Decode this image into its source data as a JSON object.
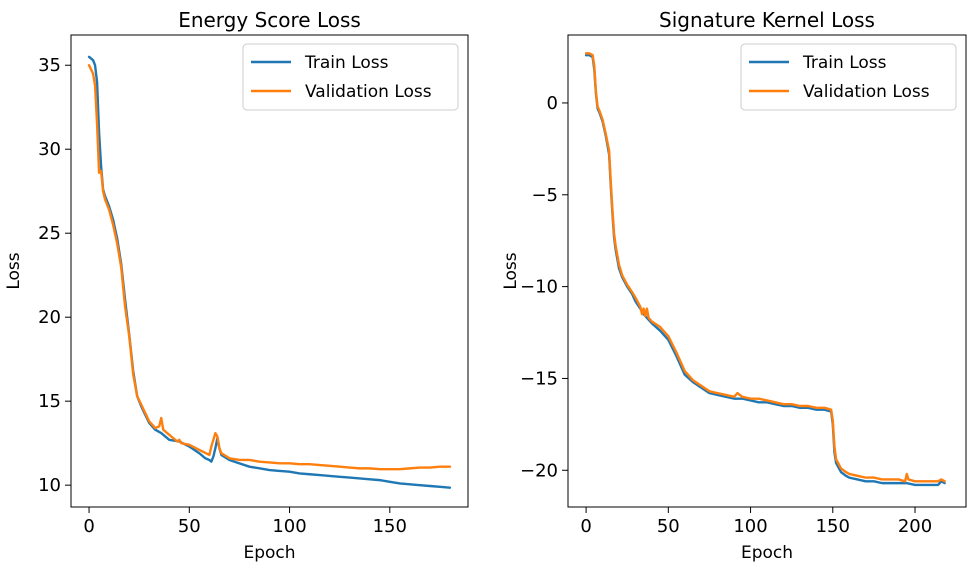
{
  "chart_data": [
    {
      "type": "line",
      "title": "Energy Score Loss",
      "xlabel": "Epoch",
      "ylabel": "Loss",
      "xlim": [
        -9,
        189
      ],
      "ylim": [
        8.7,
        36.8
      ],
      "xticks": [
        0,
        50,
        100,
        150
      ],
      "yticks": [
        10,
        15,
        20,
        25,
        30,
        35
      ],
      "grid": false,
      "legend": "top-right",
      "series": [
        {
          "name": "Train Loss",
          "color": "#1f77b4",
          "x": [
            0,
            2,
            3,
            4,
            5,
            6,
            7,
            8,
            10,
            12,
            14,
            16,
            18,
            20,
            22,
            24,
            26,
            28,
            30,
            33,
            36,
            40,
            45,
            50,
            55,
            58,
            60,
            61,
            62,
            63,
            64,
            65,
            66,
            70,
            75,
            80,
            85,
            90,
            95,
            100,
            105,
            110,
            115,
            120,
            125,
            130,
            135,
            140,
            145,
            150,
            155,
            160,
            165,
            170,
            175,
            180
          ],
          "y": [
            35.5,
            35.3,
            35.0,
            34.0,
            31.0,
            29.0,
            27.6,
            27.2,
            26.6,
            25.8,
            24.7,
            23.2,
            21.0,
            19.0,
            16.8,
            15.3,
            14.7,
            14.2,
            13.7,
            13.3,
            13.1,
            12.7,
            12.6,
            12.3,
            11.9,
            11.6,
            11.5,
            11.4,
            11.7,
            12.2,
            12.8,
            12.2,
            11.8,
            11.5,
            11.3,
            11.1,
            11.0,
            10.9,
            10.85,
            10.8,
            10.7,
            10.65,
            10.6,
            10.55,
            10.5,
            10.45,
            10.4,
            10.35,
            10.3,
            10.2,
            10.1,
            10.05,
            10.0,
            9.95,
            9.9,
            9.85
          ]
        },
        {
          "name": "Validation Loss",
          "color": "#ff7f0e",
          "x": [
            0,
            2,
            3,
            4,
            5,
            6,
            7,
            8,
            10,
            12,
            14,
            16,
            18,
            20,
            22,
            24,
            26,
            28,
            30,
            33,
            35,
            36,
            37,
            40,
            44,
            45,
            46,
            50,
            55,
            60,
            61,
            62,
            63,
            64,
            65,
            66,
            70,
            75,
            80,
            85,
            90,
            95,
            100,
            105,
            110,
            115,
            120,
            125,
            130,
            135,
            140,
            145,
            150,
            155,
            160,
            165,
            170,
            175,
            180
          ],
          "y": [
            35.0,
            34.5,
            33.8,
            31.5,
            28.6,
            28.7,
            27.5,
            27.0,
            26.4,
            25.5,
            24.4,
            23.0,
            20.6,
            18.9,
            16.6,
            15.3,
            14.8,
            14.3,
            13.8,
            13.4,
            13.5,
            14.0,
            13.3,
            13.0,
            12.6,
            12.7,
            12.5,
            12.4,
            12.1,
            11.8,
            12.3,
            12.7,
            13.1,
            12.9,
            12.2,
            11.9,
            11.6,
            11.5,
            11.5,
            11.4,
            11.35,
            11.3,
            11.3,
            11.25,
            11.25,
            11.2,
            11.15,
            11.1,
            11.05,
            11.0,
            11.0,
            10.95,
            10.95,
            10.95,
            11.0,
            11.05,
            11.05,
            11.1,
            11.1
          ]
        }
      ]
    },
    {
      "type": "line",
      "title": "Signature Kernel Loss",
      "xlabel": "Epoch",
      "ylabel": "Loss",
      "xlim": [
        -11,
        231
      ],
      "ylim": [
        -22.0,
        3.7
      ],
      "xticks": [
        0,
        50,
        100,
        150,
        200
      ],
      "yticks": [
        0,
        -5,
        -10,
        -15,
        -20
      ],
      "ytick_labels": [
        "0",
        "−5",
        "−10",
        "−15",
        "−20"
      ],
      "grid": false,
      "legend": "top-right",
      "series": [
        {
          "name": "Train Loss",
          "color": "#1f77b4",
          "x": [
            0,
            2,
            4,
            5,
            6,
            7,
            8,
            10,
            12,
            14,
            15,
            16,
            17,
            18,
            20,
            22,
            25,
            28,
            30,
            33,
            35,
            38,
            40,
            45,
            50,
            55,
            60,
            65,
            70,
            75,
            80,
            85,
            90,
            95,
            100,
            105,
            110,
            115,
            120,
            125,
            130,
            135,
            140,
            145,
            149,
            150,
            151,
            152,
            155,
            158,
            160,
            165,
            170,
            175,
            180,
            185,
            190,
            195,
            200,
            205,
            210,
            214,
            216,
            218
          ],
          "y": [
            2.6,
            2.6,
            2.5,
            1.8,
            0.5,
            -0.3,
            -0.5,
            -1.0,
            -1.8,
            -2.8,
            -4.5,
            -6.0,
            -7.3,
            -8.0,
            -9.0,
            -9.5,
            -10.0,
            -10.4,
            -10.8,
            -11.2,
            -11.5,
            -11.8,
            -12.0,
            -12.4,
            -12.9,
            -13.8,
            -14.8,
            -15.2,
            -15.5,
            -15.8,
            -15.9,
            -16.0,
            -16.1,
            -16.1,
            -16.2,
            -16.3,
            -16.3,
            -16.4,
            -16.5,
            -16.5,
            -16.6,
            -16.6,
            -16.7,
            -16.7,
            -16.8,
            -17.5,
            -19.0,
            -19.6,
            -20.1,
            -20.3,
            -20.4,
            -20.5,
            -20.6,
            -20.6,
            -20.7,
            -20.7,
            -20.7,
            -20.7,
            -20.8,
            -20.8,
            -20.8,
            -20.8,
            -20.6,
            -20.7
          ]
        },
        {
          "name": "Validation Loss",
          "color": "#ff7f0e",
          "x": [
            0,
            2,
            4,
            5,
            6,
            7,
            8,
            10,
            12,
            14,
            15,
            16,
            17,
            18,
            20,
            22,
            25,
            28,
            30,
            33,
            34,
            35,
            36,
            37,
            38,
            40,
            45,
            50,
            55,
            60,
            65,
            70,
            75,
            80,
            85,
            90,
            92,
            95,
            100,
            105,
            110,
            115,
            120,
            125,
            130,
            135,
            140,
            145,
            149,
            150,
            151,
            152,
            155,
            158,
            160,
            165,
            170,
            175,
            180,
            185,
            190,
            194,
            195,
            196,
            200,
            205,
            210,
            214,
            216,
            218
          ],
          "y": [
            2.7,
            2.7,
            2.6,
            2.0,
            0.6,
            -0.2,
            -0.4,
            -0.9,
            -1.7,
            -2.6,
            -4.3,
            -5.8,
            -7.1,
            -7.8,
            -8.8,
            -9.4,
            -9.9,
            -10.3,
            -10.6,
            -11.1,
            -11.5,
            -11.2,
            -11.6,
            -11.2,
            -11.7,
            -11.9,
            -12.2,
            -12.7,
            -13.6,
            -14.6,
            -15.1,
            -15.4,
            -15.7,
            -15.8,
            -15.9,
            -16.0,
            -15.8,
            -16.0,
            -16.1,
            -16.1,
            -16.2,
            -16.3,
            -16.4,
            -16.4,
            -16.5,
            -16.5,
            -16.6,
            -16.6,
            -16.7,
            -17.3,
            -18.7,
            -19.4,
            -19.9,
            -20.1,
            -20.2,
            -20.3,
            -20.4,
            -20.4,
            -20.5,
            -20.5,
            -20.5,
            -20.6,
            -20.2,
            -20.5,
            -20.6,
            -20.6,
            -20.6,
            -20.6,
            -20.5,
            -20.6
          ]
        }
      ]
    }
  ]
}
